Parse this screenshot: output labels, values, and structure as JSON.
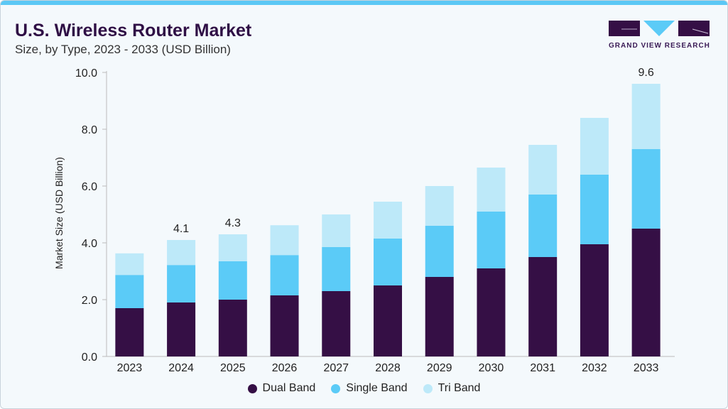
{
  "header": {
    "title": "U.S. Wireless Router Market",
    "subtitle": "Size, by Type, 2023 - 2033 (USD Billion)"
  },
  "logo": {
    "text": "GRAND VIEW RESEARCH"
  },
  "colors": {
    "Dual Band": "#350f45",
    "Single Band": "#5bcbf7",
    "Tri Band": "#bde9f9",
    "accent": "#5bc8f5"
  },
  "chart_data": {
    "type": "bar",
    "stacked": true,
    "title": "U.S. Wireless Router Market",
    "subtitle": "Size, by Type, 2023 - 2033 (USD Billion)",
    "xlabel": "",
    "ylabel": "Market Size (USD Billion)",
    "ylim": [
      0,
      10
    ],
    "yticks": [
      "0.0",
      "2.0",
      "4.0",
      "6.0",
      "8.0",
      "10.0"
    ],
    "categories": [
      "2023",
      "2024",
      "2025",
      "2026",
      "2027",
      "2028",
      "2029",
      "2030",
      "2031",
      "2032",
      "2033"
    ],
    "series": [
      {
        "name": "Dual Band",
        "values": [
          1.7,
          1.9,
          2.0,
          2.15,
          2.3,
          2.5,
          2.8,
          3.1,
          3.5,
          3.95,
          4.5
        ]
      },
      {
        "name": "Single Band",
        "values": [
          1.17,
          1.32,
          1.35,
          1.42,
          1.55,
          1.65,
          1.8,
          2.0,
          2.2,
          2.45,
          2.8
        ]
      },
      {
        "name": "Tri Band",
        "values": [
          0.76,
          0.88,
          0.95,
          1.05,
          1.15,
          1.3,
          1.4,
          1.55,
          1.75,
          2.0,
          2.3
        ]
      }
    ],
    "data_labels": {
      "2024": "4.1",
      "2025": "4.3",
      "2033": "9.6"
    },
    "legend": "bottom",
    "grid": false
  }
}
